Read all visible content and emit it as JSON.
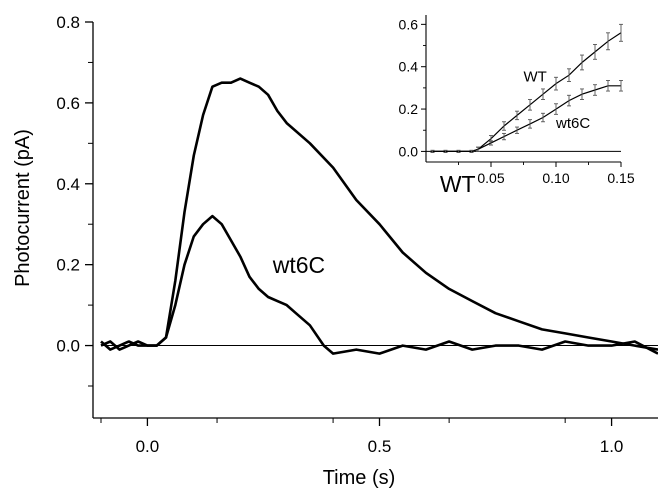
{
  "chart_data": [
    {
      "type": "line",
      "title": "",
      "xlabel": "Time (s)",
      "ylabel": "Photocurrent (pA)",
      "xlim": [
        -0.1,
        1.1
      ],
      "ylim": [
        -0.1,
        0.8
      ],
      "xticks": [
        0.0,
        0.5,
        1.0
      ],
      "xtick_labels": [
        "0.0",
        "0.5",
        "1.0"
      ],
      "yticks": [
        0.0,
        0.2,
        0.4,
        0.6,
        0.8
      ],
      "ytick_labels": [
        "0.0",
        "0.2",
        "0.4",
        "0.6",
        "0.8"
      ],
      "zero_line": true,
      "grid": false,
      "series": [
        {
          "name": "WT",
          "x": [
            -0.1,
            -0.08,
            -0.06,
            -0.04,
            -0.02,
            0.0,
            0.02,
            0.04,
            0.06,
            0.08,
            0.1,
            0.12,
            0.14,
            0.16,
            0.18,
            0.2,
            0.22,
            0.24,
            0.26,
            0.28,
            0.3,
            0.35,
            0.4,
            0.45,
            0.5,
            0.55,
            0.6,
            0.65,
            0.7,
            0.75,
            0.8,
            0.85,
            0.9,
            0.95,
            1.0,
            1.05,
            1.1
          ],
          "y": [
            0.01,
            -0.01,
            0.0,
            0.01,
            0.0,
            0.0,
            0.0,
            0.02,
            0.16,
            0.33,
            0.47,
            0.57,
            0.64,
            0.65,
            0.65,
            0.66,
            0.65,
            0.64,
            0.62,
            0.58,
            0.55,
            0.5,
            0.44,
            0.36,
            0.3,
            0.23,
            0.18,
            0.14,
            0.11,
            0.08,
            0.06,
            0.04,
            0.03,
            0.02,
            0.01,
            0.0,
            -0.01
          ]
        },
        {
          "name": "wt6C",
          "x": [
            -0.1,
            -0.08,
            -0.06,
            -0.04,
            -0.02,
            0.0,
            0.02,
            0.04,
            0.06,
            0.08,
            0.1,
            0.12,
            0.14,
            0.16,
            0.18,
            0.2,
            0.22,
            0.24,
            0.26,
            0.28,
            0.3,
            0.32,
            0.35,
            0.38,
            0.4,
            0.45,
            0.5,
            0.55,
            0.6,
            0.65,
            0.7,
            0.75,
            0.8,
            0.85,
            0.9,
            0.95,
            1.0,
            1.05,
            1.1
          ],
          "y": [
            0.0,
            0.01,
            -0.01,
            0.0,
            0.01,
            0.0,
            0.0,
            0.02,
            0.1,
            0.2,
            0.27,
            0.3,
            0.32,
            0.3,
            0.26,
            0.22,
            0.17,
            0.14,
            0.12,
            0.11,
            0.1,
            0.08,
            0.05,
            0.0,
            -0.02,
            -0.01,
            -0.02,
            0.0,
            -0.01,
            0.01,
            -0.01,
            0.0,
            0.0,
            -0.01,
            0.01,
            0.0,
            0.0,
            0.01,
            -0.02
          ]
        }
      ],
      "annotations": [
        {
          "text": "WT",
          "x": 0.63,
          "y": 0.38
        },
        {
          "text": "wt6C",
          "x": 0.27,
          "y": 0.18
        }
      ]
    },
    {
      "type": "line",
      "title": "",
      "xlabel": "",
      "ylabel": "",
      "xlim": [
        0.0,
        0.15
      ],
      "ylim": [
        -0.05,
        0.63
      ],
      "xticks": [
        0.05,
        0.1,
        0.15
      ],
      "xtick_labels": [
        "0.05",
        "0.10",
        "0.15"
      ],
      "yticks": [
        0.0,
        0.2,
        0.4,
        0.6
      ],
      "ytick_labels": [
        "0.0",
        "0.2",
        "0.4",
        "0.6"
      ],
      "zero_line": true,
      "grid": false,
      "error_bars": true,
      "series": [
        {
          "name": "WT",
          "x": [
            0.005,
            0.015,
            0.025,
            0.035,
            0.04,
            0.05,
            0.06,
            0.07,
            0.08,
            0.09,
            0.1,
            0.11,
            0.12,
            0.13,
            0.14,
            0.15
          ],
          "y": [
            0.0,
            0.0,
            0.0,
            0.0,
            0.01,
            0.06,
            0.12,
            0.17,
            0.22,
            0.27,
            0.32,
            0.36,
            0.42,
            0.47,
            0.52,
            0.56
          ],
          "err": [
            0.005,
            0.005,
            0.005,
            0.005,
            0.01,
            0.015,
            0.02,
            0.02,
            0.025,
            0.025,
            0.03,
            0.03,
            0.035,
            0.035,
            0.04,
            0.04
          ]
        },
        {
          "name": "wt6C",
          "x": [
            0.005,
            0.015,
            0.025,
            0.035,
            0.04,
            0.05,
            0.06,
            0.07,
            0.08,
            0.09,
            0.1,
            0.11,
            0.12,
            0.13,
            0.14,
            0.15
          ],
          "y": [
            0.0,
            0.0,
            0.0,
            0.0,
            0.01,
            0.04,
            0.07,
            0.1,
            0.13,
            0.16,
            0.2,
            0.24,
            0.27,
            0.29,
            0.31,
            0.31
          ],
          "err": [
            0.005,
            0.005,
            0.005,
            0.005,
            0.01,
            0.01,
            0.015,
            0.015,
            0.02,
            0.02,
            0.025,
            0.025,
            0.025,
            0.025,
            0.025,
            0.025
          ]
        }
      ],
      "annotations": [
        {
          "text": "WT",
          "x": 0.075,
          "y": 0.33
        },
        {
          "text": "wt6C",
          "x": 0.1,
          "y": 0.11
        }
      ]
    }
  ]
}
